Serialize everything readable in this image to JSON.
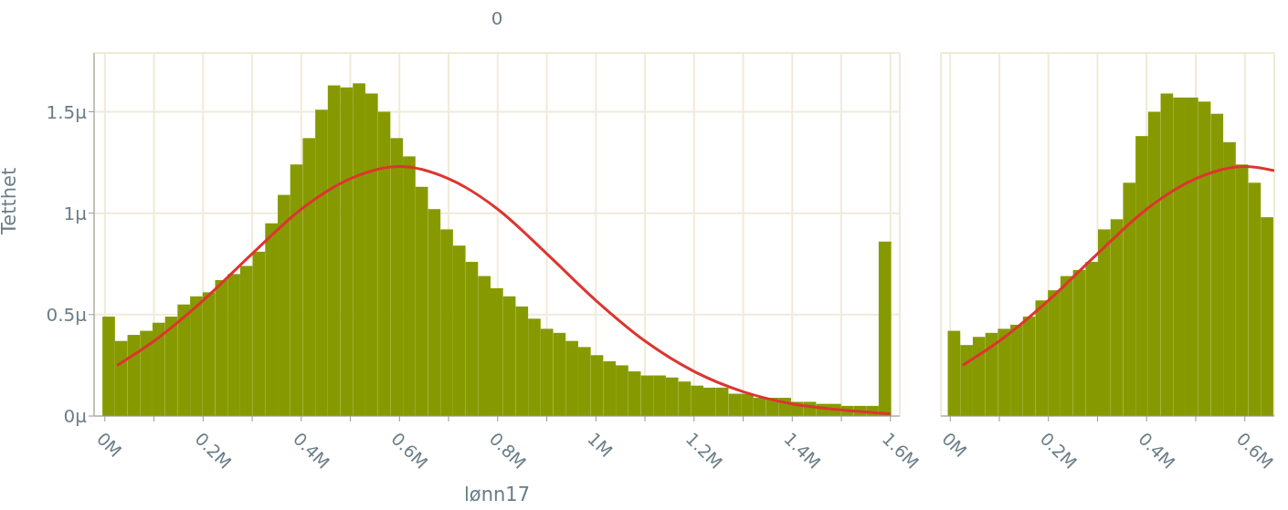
{
  "chart_data": [
    {
      "type": "histogram",
      "title": "0",
      "xlabel": "lønn17",
      "ylabel": "Tetthet",
      "xlim": [
        -0.022,
        1.619
      ],
      "ylim": [
        0,
        1.79
      ],
      "xticks": [
        {
          "value": 0,
          "label": "0M"
        },
        {
          "value": 0.1,
          "label": null
        },
        {
          "value": 0.2,
          "label": "0.2M"
        },
        {
          "value": 0.3,
          "label": null
        },
        {
          "value": 0.4,
          "label": "0.4M"
        },
        {
          "value": 0.5,
          "label": null
        },
        {
          "value": 0.6,
          "label": "0.6M"
        },
        {
          "value": 0.7,
          "label": null
        },
        {
          "value": 0.8,
          "label": "0.8M"
        },
        {
          "value": 0.9,
          "label": null
        },
        {
          "value": 1,
          "label": "1M"
        },
        {
          "value": 1.1,
          "label": null
        },
        {
          "value": 1.2,
          "label": "1.2M"
        },
        {
          "value": 1.3,
          "label": null
        },
        {
          "value": 1.4,
          "label": "1.4M"
        },
        {
          "value": 1.5,
          "label": null
        },
        {
          "value": 1.6,
          "label": "1.6M"
        }
      ],
      "yticks": [
        {
          "value": 0,
          "label": "0μ"
        },
        {
          "value": 0.5,
          "label": "0.5μ"
        },
        {
          "value": 1,
          "label": "1μ"
        },
        {
          "value": 1.5,
          "label": "1.5μ"
        }
      ],
      "grid": true,
      "series": [
        {
          "type": "histogram",
          "color": "#869a00",
          "bins": [
            -0.005,
            0.0205,
            0.046,
            0.0715,
            0.097,
            0.1225,
            0.148,
            0.1735,
            0.199,
            0.2245,
            0.25,
            0.2755,
            0.301,
            0.3265,
            0.352,
            0.3775,
            0.403,
            0.4285,
            0.454,
            0.4795,
            0.505,
            0.5305,
            0.556,
            0.5815,
            0.607,
            0.6325,
            0.658,
            0.6835,
            0.709,
            0.7345,
            0.76,
            0.7855,
            0.811,
            0.8365,
            0.862,
            0.8875,
            0.913,
            0.9385,
            0.964,
            0.9895,
            1.015,
            1.0405,
            1.066,
            1.0915,
            1.117,
            1.1425,
            1.168,
            1.1935,
            1.219,
            1.2445,
            1.27,
            1.2955,
            1.321,
            1.3465,
            1.372,
            1.3975,
            1.423,
            1.4485,
            1.474,
            1.4995,
            1.525,
            1.5505,
            1.576,
            1.6015
          ],
          "values": [
            0.49,
            0.37,
            0.4,
            0.42,
            0.46,
            0.49,
            0.55,
            0.59,
            0.61,
            0.67,
            0.7,
            0.74,
            0.81,
            0.95,
            1.09,
            1.24,
            1.37,
            1.51,
            1.63,
            1.62,
            1.64,
            1.59,
            1.5,
            1.37,
            1.28,
            1.13,
            1.02,
            0.92,
            0.84,
            0.76,
            0.69,
            0.63,
            0.59,
            0.54,
            0.48,
            0.43,
            0.41,
            0.37,
            0.34,
            0.3,
            0.27,
            0.25,
            0.22,
            0.2,
            0.2,
            0.19,
            0.17,
            0.15,
            0.14,
            0.14,
            0.11,
            0.11,
            0.09,
            0.09,
            0.09,
            0.07,
            0.07,
            0.06,
            0.06,
            0.05,
            0.05,
            0.05,
            0.86
          ]
        },
        {
          "type": "line",
          "color": "#dd3530",
          "x": [
            0.025,
            0.1,
            0.2,
            0.3,
            0.4,
            0.5,
            0.6,
            0.7,
            0.8,
            0.9,
            1.0,
            1.1,
            1.2,
            1.3,
            1.4,
            1.5,
            1.6
          ],
          "values": [
            0.25,
            0.37,
            0.57,
            0.8,
            1.02,
            1.17,
            1.23,
            1.17,
            1.02,
            0.8,
            0.57,
            0.37,
            0.22,
            0.12,
            0.06,
            0.03,
            0.01
          ]
        }
      ]
    },
    {
      "type": "histogram",
      "xlim": [
        -0.019,
        0.66
      ],
      "ylim": [
        0,
        1.79
      ],
      "tick_labels": "x",
      "xticks": [
        {
          "value": 0,
          "label": "0M"
        },
        {
          "value": 0.1,
          "label": null
        },
        {
          "value": 0.2,
          "label": "0.2M"
        },
        {
          "value": 0.3,
          "label": null
        },
        {
          "value": 0.4,
          "label": "0.4M"
        },
        {
          "value": 0.5,
          "label": null
        },
        {
          "value": 0.6,
          "label": "0.6M"
        }
      ],
      "yticks": [
        {
          "value": 0,
          "label": null
        },
        {
          "value": 0.5,
          "label": null
        },
        {
          "value": 1,
          "label": null
        },
        {
          "value": 1.5,
          "label": null
        }
      ],
      "grid": true,
      "series": [
        {
          "type": "histogram",
          "color": "#869a00",
          "bins": [
            -0.005,
            0.0205,
            0.046,
            0.0715,
            0.097,
            0.1225,
            0.148,
            0.1735,
            0.199,
            0.2245,
            0.25,
            0.2755,
            0.301,
            0.3265,
            0.352,
            0.3775,
            0.403,
            0.4285,
            0.454,
            0.4795,
            0.505,
            0.5305,
            0.556,
            0.5815,
            0.607,
            0.6325,
            0.658
          ],
          "values": [
            0.42,
            0.35,
            0.39,
            0.41,
            0.43,
            0.45,
            0.49,
            0.57,
            0.62,
            0.69,
            0.72,
            0.76,
            0.92,
            0.97,
            1.15,
            1.38,
            1.5,
            1.59,
            1.57,
            1.57,
            1.55,
            1.49,
            1.35,
            1.24,
            1.15,
            0.98
          ]
        },
        {
          "type": "line",
          "color": "#dd3530",
          "x": [
            0.025,
            0.1,
            0.2,
            0.3,
            0.4,
            0.5,
            0.6,
            0.66
          ],
          "values": [
            0.25,
            0.37,
            0.57,
            0.8,
            1.02,
            1.17,
            1.23,
            1.21
          ]
        }
      ]
    }
  ]
}
